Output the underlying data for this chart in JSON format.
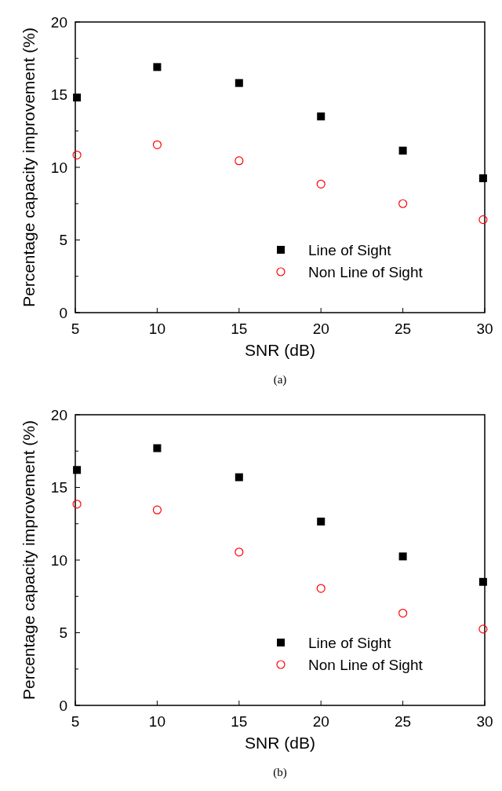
{
  "chart_data": [
    {
      "type": "scatter",
      "xlabel": "SNR (dB)",
      "ylabel": "Percentage capacity improvement (%)",
      "annotations": [
        "(a)"
      ],
      "x": [
        5.1,
        10,
        15,
        20,
        25,
        29.9
      ],
      "xlim": [
        5,
        30
      ],
      "xticks": [
        5,
        10,
        15,
        20,
        25,
        30
      ],
      "ylim": [
        0,
        20
      ],
      "yticks": [
        0,
        {
          "value": 2.5,
          "label": null
        },
        5,
        {
          "value": 7.5,
          "label": null
        },
        10,
        {
          "value": 12.5,
          "label": null
        },
        15,
        {
          "value": 17.5,
          "label": null
        },
        20
      ],
      "grid": false,
      "legend": "bottom right",
      "series": [
        {
          "name": "Line of Sight",
          "color": "#000000",
          "marker": "square",
          "values": [
            14.8,
            16.9,
            15.8,
            13.5,
            11.15,
            9.25
          ]
        },
        {
          "name": "Non Line of Sight",
          "color": "#ff0000",
          "marker": "circle",
          "values": [
            10.85,
            11.55,
            10.45,
            8.85,
            7.5,
            6.4
          ]
        }
      ]
    },
    {
      "type": "scatter",
      "xlabel": "SNR (dB)",
      "ylabel": "Percentage capacity improvement (%)",
      "annotations": [
        "(b)"
      ],
      "x": [
        5.1,
        10,
        15,
        20,
        25,
        29.9
      ],
      "xlim": [
        5,
        30
      ],
      "xticks": [
        5,
        10,
        15,
        20,
        25,
        30
      ],
      "ylim": [
        0,
        20
      ],
      "yticks": [
        0,
        {
          "value": 2.5,
          "label": null
        },
        5,
        {
          "value": 7.5,
          "label": null
        },
        10,
        {
          "value": 12.5,
          "label": null
        },
        15,
        {
          "value": 17.5,
          "label": null
        },
        20
      ],
      "grid": false,
      "legend": "bottom right",
      "series": [
        {
          "name": "Line of Sight",
          "color": "#000000",
          "marker": "square",
          "values": [
            16.2,
            17.7,
            15.7,
            12.65,
            10.25,
            8.5
          ]
        },
        {
          "name": "Non Line of Sight",
          "color": "#ff0000",
          "marker": "circle",
          "values": [
            13.85,
            13.45,
            10.55,
            8.05,
            6.35,
            5.25
          ]
        }
      ]
    }
  ]
}
